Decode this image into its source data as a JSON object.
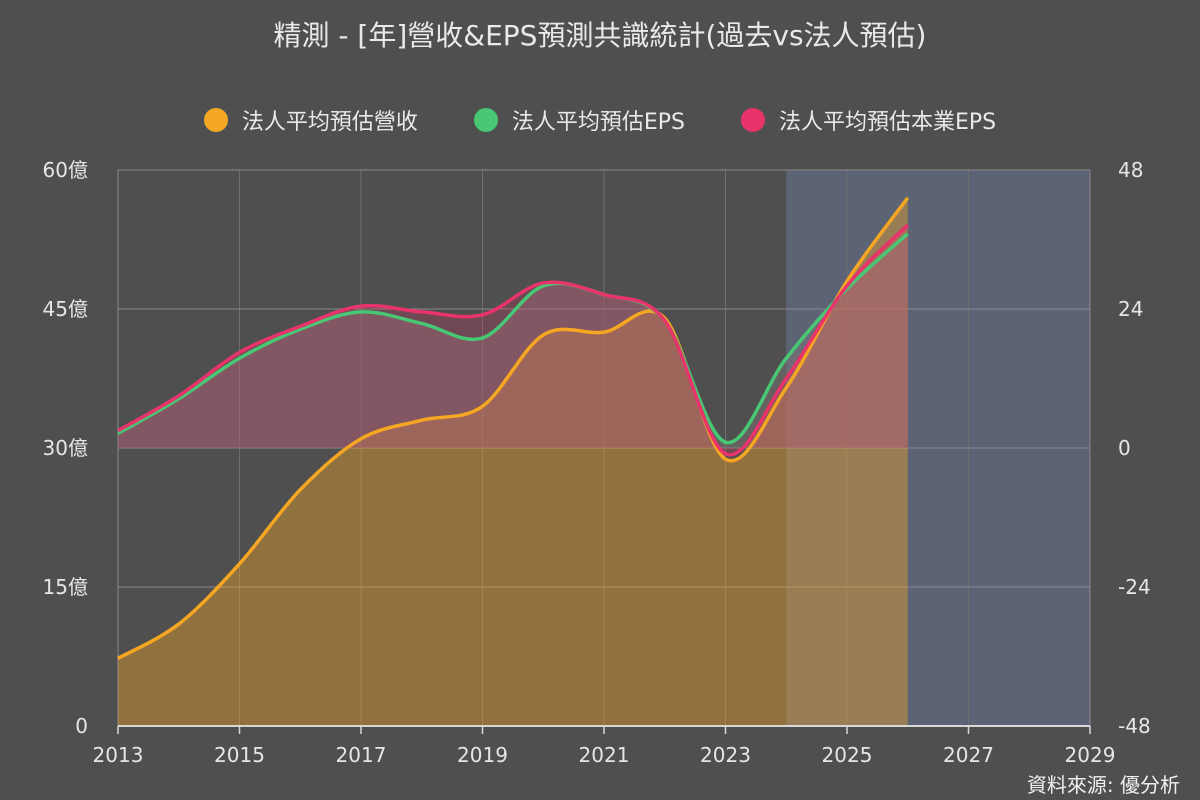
{
  "title": "精測 - [年]營收&EPS預測共識統計(過去vs法人預估)",
  "source": "資料來源: 優分析",
  "chart_data": {
    "type": "area",
    "title": "精測 - [年]營收&EPS預測共識統計(過去vs法人預估)",
    "x_ticks": [
      "2013",
      "2015",
      "2017",
      "2019",
      "2021",
      "2023",
      "2025",
      "2027",
      "2029"
    ],
    "xlim": [
      2013,
      2029
    ],
    "y_left_ticks": [
      "0",
      "15億",
      "30億",
      "45億",
      "60億"
    ],
    "ylim_left": [
      0,
      60
    ],
    "y_right_ticks": [
      "-48",
      "-24",
      "0",
      "24",
      "48"
    ],
    "ylim_right": [
      -48,
      48
    ],
    "forecast_region": [
      2024,
      2029
    ],
    "series": [
      {
        "name": "法人平均預估營收",
        "color": "#f5a623",
        "axis": "left",
        "x": [
          2013,
          2014,
          2015,
          2016,
          2017,
          2018,
          2019,
          2020,
          2021,
          2022,
          2023,
          2024,
          2025,
          2026
        ],
        "values": [
          7.3,
          11.0,
          17.5,
          25.5,
          31.0,
          33.0,
          34.5,
          42.2,
          42.5,
          44.0,
          28.8,
          36.5,
          48.0,
          57.0
        ]
      },
      {
        "name": "法人平均預估EPS",
        "color": "#48c774",
        "axis": "right",
        "x": [
          2013,
          2014,
          2015,
          2016,
          2017,
          2018,
          2019,
          2020,
          2021,
          2022,
          2023,
          2024,
          2025,
          2026
        ],
        "values": [
          2.5,
          8.5,
          15.5,
          20.5,
          23.5,
          21.5,
          19.0,
          28.0,
          26.5,
          22.0,
          1.0,
          15.5,
          27.5,
          37.0
        ]
      },
      {
        "name": "法人平均預估本業EPS",
        "color": "#e8336b",
        "axis": "right",
        "x": [
          2013,
          2014,
          2015,
          2016,
          2017,
          2018,
          2019,
          2020,
          2021,
          2022,
          2023,
          2024,
          2025,
          2026
        ],
        "values": [
          3.0,
          9.0,
          16.5,
          21.0,
          24.5,
          23.5,
          23.0,
          28.5,
          26.5,
          22.0,
          -1.0,
          12.0,
          28.0,
          38.5
        ]
      }
    ]
  }
}
